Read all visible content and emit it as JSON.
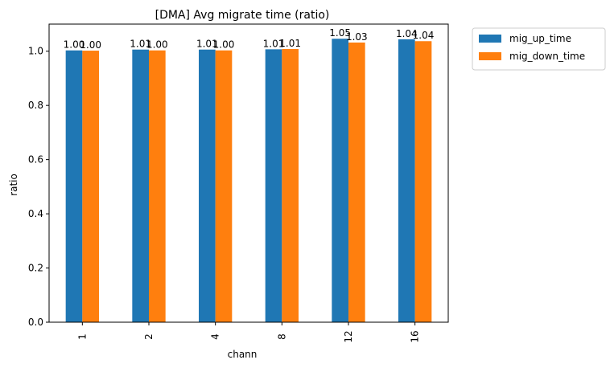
{
  "chart_data": {
    "type": "bar",
    "title": "[DMA] Avg migrate time (ratio)",
    "xlabel": "chann",
    "ylabel": "ratio",
    "categories": [
      "1",
      "2",
      "4",
      "8",
      "12",
      "16"
    ],
    "ylim": [
      0,
      1.1
    ],
    "yticks": [
      "0.0",
      "0.2",
      "0.4",
      "0.6",
      "0.8",
      "1.0"
    ],
    "series": [
      {
        "name": "mig_up_time",
        "color": "#1f77b4",
        "values": [
          1.003,
          1.006,
          1.006,
          1.007,
          1.046,
          1.044
        ],
        "labels": [
          "1.00",
          "1.01",
          "1.01",
          "1.01",
          "1.05",
          "1.04"
        ]
      },
      {
        "name": "mig_down_time",
        "color": "#ff7f0e",
        "values": [
          1.002,
          1.003,
          1.003,
          1.008,
          1.032,
          1.037
        ],
        "labels": [
          "1.00",
          "1.00",
          "1.00",
          "1.01",
          "1.03",
          "1.04"
        ]
      }
    ],
    "legend_position": "outside-right",
    "grid": false
  }
}
